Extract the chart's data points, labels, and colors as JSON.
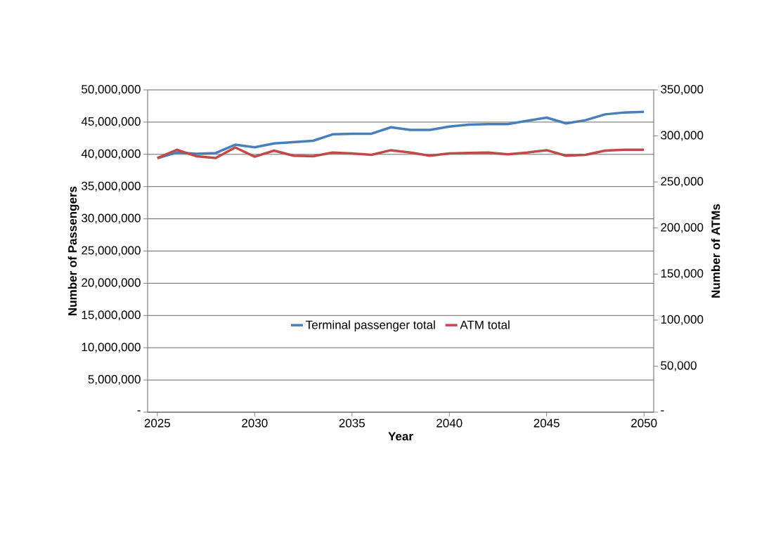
{
  "chart_data": {
    "type": "line",
    "xlabel": "Year",
    "ylabel": "Number of Passengers",
    "y2label": "Number of ATMs",
    "x": [
      2025,
      2026,
      2027,
      2028,
      2029,
      2030,
      2031,
      2032,
      2033,
      2034,
      2035,
      2036,
      2037,
      2038,
      2039,
      2040,
      2041,
      2042,
      2043,
      2044,
      2045,
      2046,
      2047,
      2048,
      2049,
      2050
    ],
    "xlim": [
      2024.5,
      2050.5
    ],
    "xticks": [
      2025,
      2030,
      2035,
      2040,
      2045,
      2050
    ],
    "ylim": [
      0,
      50000000
    ],
    "yticks": [
      {
        "value": 0,
        "label": "-"
      },
      {
        "value": 5000000,
        "label": "5,000,000"
      },
      {
        "value": 10000000,
        "label": "10,000,000"
      },
      {
        "value": 15000000,
        "label": "15,000,000"
      },
      {
        "value": 20000000,
        "label": "20,000,000"
      },
      {
        "value": 25000000,
        "label": "25,000,000"
      },
      {
        "value": 30000000,
        "label": "30,000,000"
      },
      {
        "value": 35000000,
        "label": "35,000,000"
      },
      {
        "value": 40000000,
        "label": "40,000,000"
      },
      {
        "value": 45000000,
        "label": "45,000,000"
      },
      {
        "value": 50000000,
        "label": "50,000,000"
      }
    ],
    "y2lim": [
      0,
      350000
    ],
    "y2ticks": [
      {
        "value": 0,
        "label": "-"
      },
      {
        "value": 50000,
        "label": "50,000"
      },
      {
        "value": 100000,
        "label": "100,000"
      },
      {
        "value": 150000,
        "label": "150,000"
      },
      {
        "value": 200000,
        "label": "200,000"
      },
      {
        "value": 250000,
        "label": "250,000"
      },
      {
        "value": 300000,
        "label": "300,000"
      },
      {
        "value": 350000,
        "label": "350,000"
      }
    ],
    "grid": "y",
    "legend": "center",
    "marker": "none",
    "line_style": "solid",
    "series": [
      {
        "name": "Terminal passenger total",
        "color": "#4a7ebb",
        "values": [
          39400000,
          40300000,
          40100000,
          40200000,
          41500000,
          41100000,
          41700000,
          41900000,
          42100000,
          43100000,
          43200000,
          43200000,
          44200000,
          43800000,
          43800000,
          44300000,
          44600000,
          44700000,
          44700000,
          45200000,
          45700000,
          44800000,
          45300000,
          46200000,
          46500000,
          46600000
        ]
      },
      {
        "name": "ATM total",
        "color": "#be4b48",
        "axis": "y2",
        "values": [
          276000,
          285000,
          278000,
          276000,
          287500,
          277500,
          284000,
          278500,
          278000,
          282000,
          281000,
          279500,
          284500,
          282000,
          278500,
          281000,
          281500,
          282000,
          280000,
          282000,
          284500,
          278500,
          279500,
          284000,
          285000,
          285000
        ]
      }
    ]
  }
}
